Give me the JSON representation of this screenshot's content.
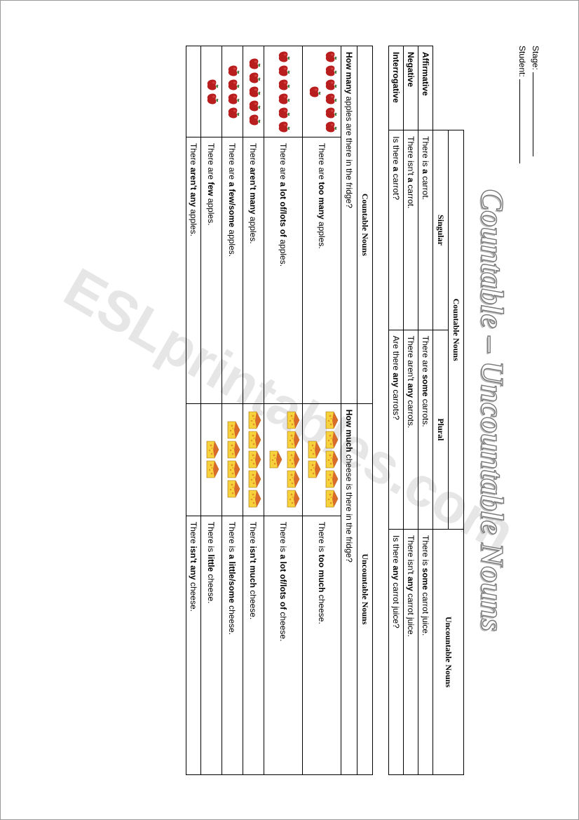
{
  "header": {
    "stage_label": "Stage:",
    "student_label": "Student:"
  },
  "title": "Countable – Uncountable Nouns",
  "watermark": "ESLprintables.com",
  "table1": {
    "col_headers": {
      "countable": "Countable Nouns",
      "singular": "Singular",
      "plural": "Plural",
      "uncountable": "Uncountable Nouns"
    },
    "rows": [
      {
        "label": "Affirmative",
        "singular": {
          "pre": "There is ",
          "b": "a",
          "post": " carrot."
        },
        "plural": {
          "pre": "There are ",
          "b": "some",
          "post": " carrots."
        },
        "uncount": {
          "pre": "There is ",
          "b": "some",
          "post": " carrot juice."
        }
      },
      {
        "label": "Negative",
        "singular": {
          "pre": "There isn't ",
          "b": "a",
          "post": " carrot."
        },
        "plural": {
          "pre": "There aren't ",
          "b": "any",
          "post": " carrots."
        },
        "uncount": {
          "pre": "There isn't ",
          "b": "any",
          "post": " carrot juice."
        }
      },
      {
        "label": "Interrogative",
        "singular": {
          "pre": "Is there ",
          "b": "a",
          "post": " carrot?"
        },
        "plural": {
          "pre": "Are there ",
          "b": "any",
          "post": " carrots?"
        },
        "uncount": {
          "pre": "Is there ",
          "b": "any",
          "post": " carrot juice?"
        }
      }
    ]
  },
  "table2": {
    "headers": {
      "countable": "Countable Nouns",
      "uncountable": "Uncountable Nouns"
    },
    "question": {
      "count": {
        "pre": "",
        "b": "How many",
        "post": " apples are there in the fridge?"
      },
      "uncount": {
        "pre": "",
        "b": "How much",
        "post": " cheese is there in the fridge?"
      }
    },
    "rows": [
      {
        "apples": 7,
        "count": {
          "pre": "There are ",
          "b": "too many",
          "post": " apples."
        },
        "cheeses": 7,
        "uncount": {
          "pre": "There is ",
          "b": "too much",
          "post": " cheese."
        }
      },
      {
        "apples": 6,
        "count": {
          "pre": "There are ",
          "b": "a lot of/lots of",
          "post": " apples."
        },
        "cheeses": 6,
        "uncount": {
          "pre": "There is ",
          "b": "a lot of/lots of",
          "post": " cheese."
        }
      },
      {
        "apples": 5,
        "count": {
          "pre": "There ",
          "b": "aren't many",
          "post": " apples."
        },
        "cheeses": 5,
        "uncount": {
          "pre": "There ",
          "b": "isn't much",
          "post": " cheese."
        }
      },
      {
        "apples": 4,
        "count": {
          "pre": "There are ",
          "b": "a few/some",
          "post": " apples."
        },
        "cheeses": 4,
        "uncount": {
          "pre": "There is ",
          "b": "a little/some",
          "post": " cheese."
        }
      },
      {
        "apples": 2,
        "count": {
          "pre": "There are ",
          "b": "few",
          "post": " apples."
        },
        "cheeses": 2,
        "uncount": {
          "pre": "There is ",
          "b": "little",
          "post": " cheese."
        }
      },
      {
        "apples": 0,
        "count": {
          "pre": "There ",
          "b": "aren't any",
          "post": " apples."
        },
        "cheeses": 0,
        "uncount": {
          "pre": "There ",
          "b": "isn't any",
          "post": " cheese."
        }
      }
    ]
  },
  "icons": {
    "apple": {
      "body": "#b81e1e",
      "highlight": "#e85a5a",
      "leaf": "#2e7d32",
      "stem": "#5d4037",
      "size": 18
    },
    "cheese": {
      "body": "#f7d23b",
      "rind": "#d96b2b",
      "hole": "#e0902a",
      "size_w": 26,
      "size_h": 20
    }
  },
  "colors": {
    "border": "#000000",
    "page_bg": "#ffffff",
    "title_stroke": "#777777",
    "title_shadow": "#bbbbbb",
    "watermark": "#e6e6e6"
  }
}
